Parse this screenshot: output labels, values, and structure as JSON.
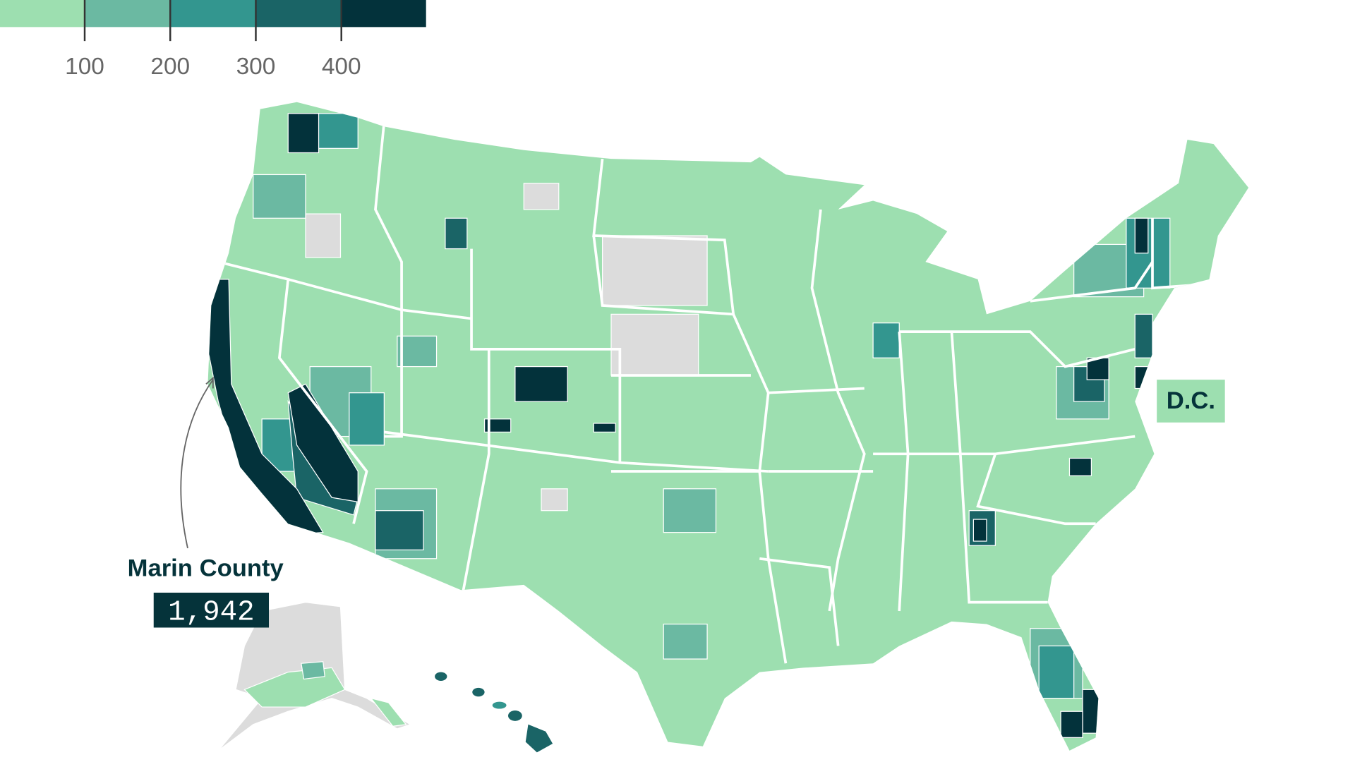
{
  "legend": {
    "colors": [
      "#9ddfb0",
      "#6bb9a2",
      "#33968f",
      "#1a6466",
      "#03323b"
    ],
    "ticks": [
      "100",
      "200",
      "300",
      "400"
    ]
  },
  "colors": {
    "no_data": "#dcdcdc",
    "annotation_text": "#05333a"
  },
  "callout": {
    "name": "Marin County",
    "value": "1,942"
  },
  "dc": {
    "label": "D.C."
  }
}
